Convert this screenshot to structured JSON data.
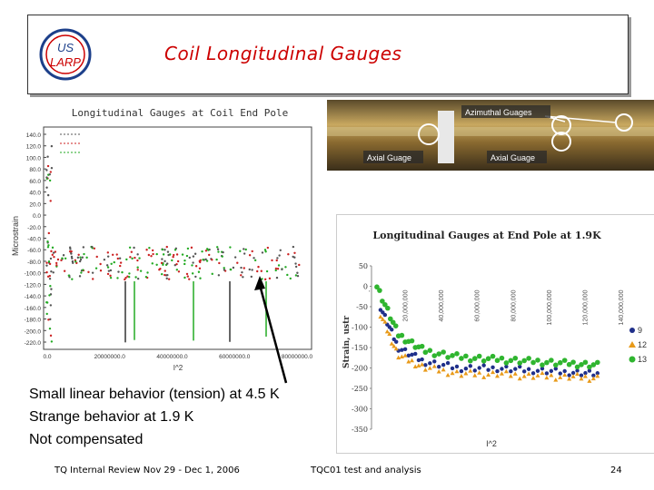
{
  "slide": {
    "title": "Coil Longitudinal Gauges",
    "logo_text": [
      "US",
      "LARP"
    ],
    "notes": [
      "Small linear behavior (tension) at 4.5 K",
      "Strange behavior at 1.9 K",
      "Not compensated"
    ],
    "footer_left": "TQ Internal Review Nov 29 - Dec 1, 2006",
    "footer_center": "TQC01 test and analysis",
    "page_number": "24"
  },
  "photo": {
    "labels": [
      "Azimuthal Guages",
      "Axial Guage",
      "Axial Guage"
    ]
  },
  "colors": {
    "title": "#cc0000",
    "series9": "#1f2f8a",
    "series12": "#e89a1a",
    "series13": "#2fb52f"
  },
  "chart_data": [
    {
      "type": "scatter",
      "title": "Longitudinal Gauges at Coil End Pole",
      "xlabel": "I^2",
      "ylabel": "Microstrain",
      "x_ticks": [
        "0.0",
        "20000000.0",
        "40000000.0",
        "60000000.0",
        "80000000.0"
      ],
      "y_ticks": [
        "140.0",
        "120.0",
        "100.0",
        "80.0",
        "60.0",
        "40.0",
        "20.0",
        "0.0",
        "-20.0",
        "-40.0",
        "-60.0",
        "-80.0",
        "-100.0",
        "-120.0",
        "-140.0",
        "-160.0",
        "-180.0",
        "-200.0",
        "-220.0"
      ],
      "series_colors": [
        "#555555",
        "#cc2222",
        "#22aa22"
      ],
      "legend": "top-left"
    },
    {
      "type": "scatter",
      "title": "Longitudinal Gauges at End Pole at 1.9K",
      "xlabel": "I^2",
      "ylabel": "Strain, ustr",
      "x_ticks": [
        "-",
        "20,000,000",
        "40,000,000",
        "60,000,000",
        "80,000,000",
        "100,000,000",
        "120,000,000",
        "140,000,000"
      ],
      "y_ticks": [
        "50",
        "0",
        "-50",
        "-100",
        "-150",
        "-200",
        "-250",
        "-300",
        "-350"
      ],
      "legend": "right",
      "series": [
        {
          "name": "9",
          "x": [
            5000000,
            15000000,
            30000000,
            50000000,
            70000000,
            90000000,
            110000000,
            128000000
          ],
          "y": [
            -50,
            -150,
            -185,
            -200,
            -200,
            -205,
            -210,
            -215
          ]
        },
        {
          "name": "12",
          "x": [
            5000000,
            15000000,
            30000000,
            50000000,
            70000000,
            90000000,
            110000000,
            128000000
          ],
          "y": [
            -70,
            -170,
            -200,
            -215,
            -215,
            -220,
            -222,
            -225
          ]
        },
        {
          "name": "13",
          "x": [
            3000000,
            15000000,
            30000000,
            50000000,
            70000000,
            90000000,
            110000000,
            128000000
          ],
          "y": [
            0,
            -120,
            -160,
            -175,
            -180,
            -185,
            -190,
            -195
          ]
        }
      ]
    }
  ]
}
